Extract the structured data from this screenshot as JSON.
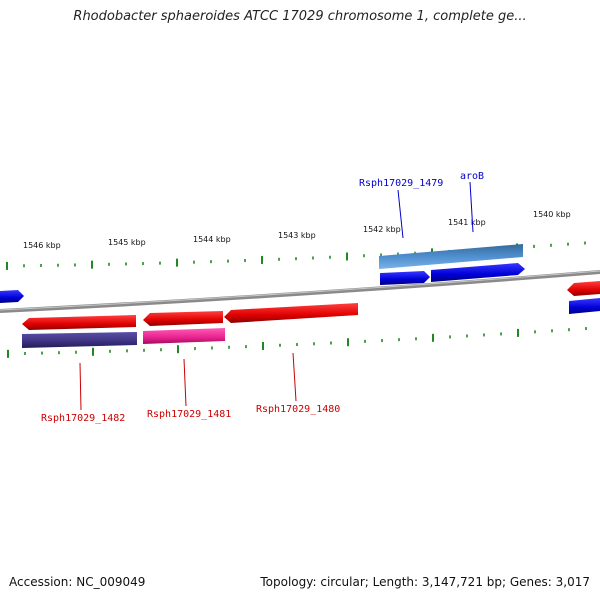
{
  "title": "Rhodobacter sphaeroides ATCC 17029 chromosome 1, complete ge...",
  "footer": {
    "accession": "Accession: NC_009049",
    "stats": "Topology: circular; Length: 3,147,721 bp; Genes: 3,017"
  },
  "kbp_labels": [
    "1546 kbp",
    "1545 kbp",
    "1544 kbp",
    "1543 kbp",
    "1542 kbp",
    "1541 kbp",
    "1540 kbp"
  ],
  "genes": {
    "rsph17029_1479": "Rsph17029_1479",
    "arob": "aroB",
    "rsph17029_1482": "Rsph17029_1482",
    "rsph17029_1481": "Rsph17029_1481",
    "rsph17029_1480": "Rsph17029_1480"
  },
  "colors": {
    "forward_gene": "#0000ee",
    "reverse_gene": "#ee0000",
    "cds_light_blue": "#4a8ccc",
    "cds_dark_blue": "#463a8c",
    "cds_pink": "#ee2a9c",
    "tick_green": "#228822",
    "backbone": "#888888"
  }
}
